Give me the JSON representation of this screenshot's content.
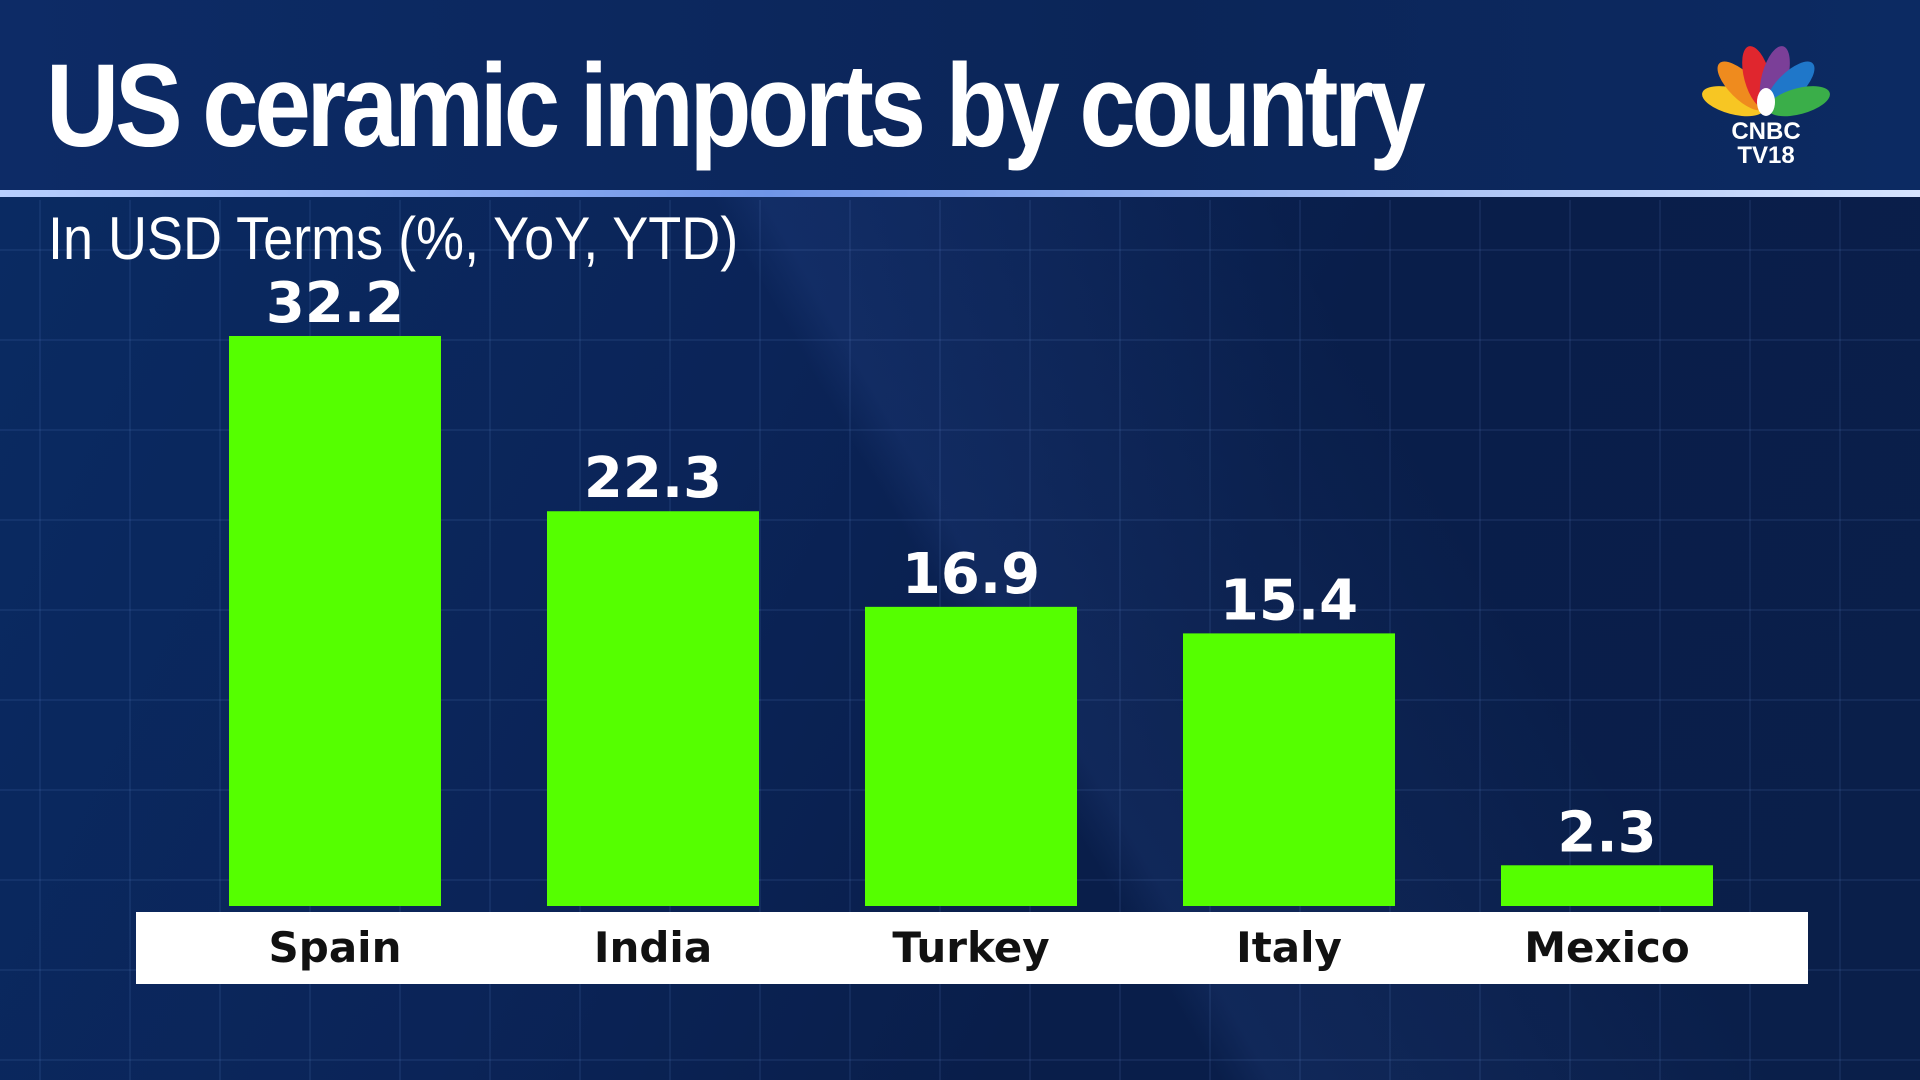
{
  "header": {
    "title": "US ceramic imports by country",
    "subtitle": "In USD Terms (%, YoY, YTD)"
  },
  "logo": {
    "line1": "CNBC",
    "line2": "TV18",
    "peacock_colors": [
      "#f7c623",
      "#ef8b1e",
      "#e0262e",
      "#7b3f98",
      "#1f77c9",
      "#3aae49"
    ]
  },
  "colors": {
    "background": "#0b2050",
    "bar": "#55ff00",
    "text_light": "#ffffff",
    "text_dark": "#111111"
  },
  "chart_data": {
    "type": "bar",
    "title": "US ceramic imports by country",
    "subtitle": "In USD Terms (%, YoY, YTD)",
    "categories": [
      "Spain",
      "India",
      "Turkey",
      "Italy",
      "Mexico"
    ],
    "values": [
      32.2,
      22.3,
      16.9,
      15.4,
      2.3
    ],
    "data_labels": [
      "32.2",
      "22.3",
      "16.9",
      "15.4",
      "2.3"
    ],
    "ylim": [
      0,
      35
    ],
    "grid": true,
    "legend": "none"
  }
}
